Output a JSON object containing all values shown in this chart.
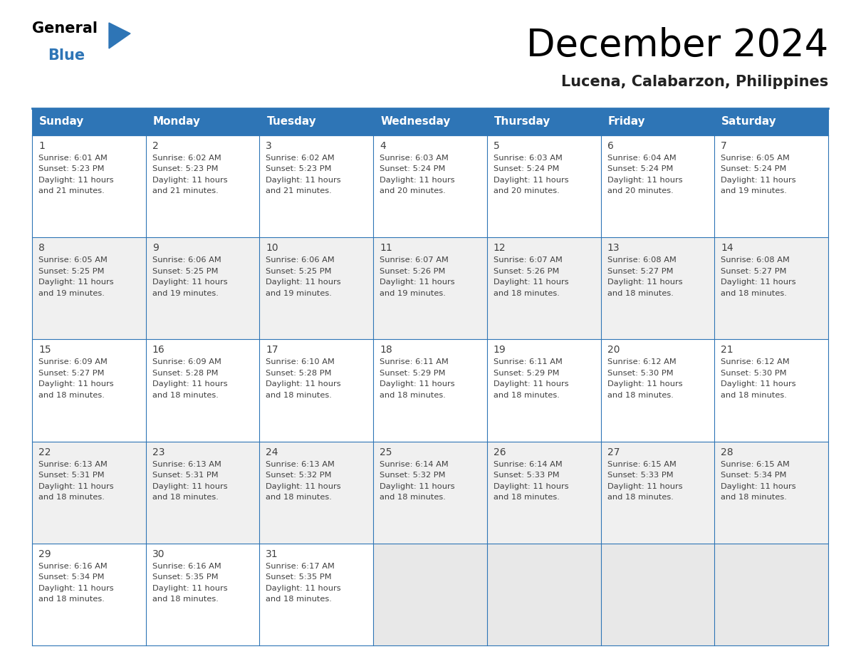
{
  "title": "December 2024",
  "subtitle": "Lucena, Calabarzon, Philippines",
  "header_bg": "#2E75B6",
  "header_text_color": "#FFFFFF",
  "days_of_week": [
    "Sunday",
    "Monday",
    "Tuesday",
    "Wednesday",
    "Thursday",
    "Friday",
    "Saturday"
  ],
  "cell_bg_white": "#FFFFFF",
  "cell_bg_gray": "#F0F0F0",
  "cell_bg_empty": "#E8E8E8",
  "border_color": "#2E75B6",
  "text_color": "#404040",
  "calendar": [
    [
      {
        "day": 1,
        "sunrise": "6:01 AM",
        "sunset": "5:23 PM",
        "daylight": "11 hours and 21 minutes."
      },
      {
        "day": 2,
        "sunrise": "6:02 AM",
        "sunset": "5:23 PM",
        "daylight": "11 hours and 21 minutes."
      },
      {
        "day": 3,
        "sunrise": "6:02 AM",
        "sunset": "5:23 PM",
        "daylight": "11 hours and 21 minutes."
      },
      {
        "day": 4,
        "sunrise": "6:03 AM",
        "sunset": "5:24 PM",
        "daylight": "11 hours and 20 minutes."
      },
      {
        "day": 5,
        "sunrise": "6:03 AM",
        "sunset": "5:24 PM",
        "daylight": "11 hours and 20 minutes."
      },
      {
        "day": 6,
        "sunrise": "6:04 AM",
        "sunset": "5:24 PM",
        "daylight": "11 hours and 20 minutes."
      },
      {
        "day": 7,
        "sunrise": "6:05 AM",
        "sunset": "5:24 PM",
        "daylight": "11 hours and 19 minutes."
      }
    ],
    [
      {
        "day": 8,
        "sunrise": "6:05 AM",
        "sunset": "5:25 PM",
        "daylight": "11 hours and 19 minutes."
      },
      {
        "day": 9,
        "sunrise": "6:06 AM",
        "sunset": "5:25 PM",
        "daylight": "11 hours and 19 minutes."
      },
      {
        "day": 10,
        "sunrise": "6:06 AM",
        "sunset": "5:25 PM",
        "daylight": "11 hours and 19 minutes."
      },
      {
        "day": 11,
        "sunrise": "6:07 AM",
        "sunset": "5:26 PM",
        "daylight": "11 hours and 19 minutes."
      },
      {
        "day": 12,
        "sunrise": "6:07 AM",
        "sunset": "5:26 PM",
        "daylight": "11 hours and 18 minutes."
      },
      {
        "day": 13,
        "sunrise": "6:08 AM",
        "sunset": "5:27 PM",
        "daylight": "11 hours and 18 minutes."
      },
      {
        "day": 14,
        "sunrise": "6:08 AM",
        "sunset": "5:27 PM",
        "daylight": "11 hours and 18 minutes."
      }
    ],
    [
      {
        "day": 15,
        "sunrise": "6:09 AM",
        "sunset": "5:27 PM",
        "daylight": "11 hours and 18 minutes."
      },
      {
        "day": 16,
        "sunrise": "6:09 AM",
        "sunset": "5:28 PM",
        "daylight": "11 hours and 18 minutes."
      },
      {
        "day": 17,
        "sunrise": "6:10 AM",
        "sunset": "5:28 PM",
        "daylight": "11 hours and 18 minutes."
      },
      {
        "day": 18,
        "sunrise": "6:11 AM",
        "sunset": "5:29 PM",
        "daylight": "11 hours and 18 minutes."
      },
      {
        "day": 19,
        "sunrise": "6:11 AM",
        "sunset": "5:29 PM",
        "daylight": "11 hours and 18 minutes."
      },
      {
        "day": 20,
        "sunrise": "6:12 AM",
        "sunset": "5:30 PM",
        "daylight": "11 hours and 18 minutes."
      },
      {
        "day": 21,
        "sunrise": "6:12 AM",
        "sunset": "5:30 PM",
        "daylight": "11 hours and 18 minutes."
      }
    ],
    [
      {
        "day": 22,
        "sunrise": "6:13 AM",
        "sunset": "5:31 PM",
        "daylight": "11 hours and 18 minutes."
      },
      {
        "day": 23,
        "sunrise": "6:13 AM",
        "sunset": "5:31 PM",
        "daylight": "11 hours and 18 minutes."
      },
      {
        "day": 24,
        "sunrise": "6:13 AM",
        "sunset": "5:32 PM",
        "daylight": "11 hours and 18 minutes."
      },
      {
        "day": 25,
        "sunrise": "6:14 AM",
        "sunset": "5:32 PM",
        "daylight": "11 hours and 18 minutes."
      },
      {
        "day": 26,
        "sunrise": "6:14 AM",
        "sunset": "5:33 PM",
        "daylight": "11 hours and 18 minutes."
      },
      {
        "day": 27,
        "sunrise": "6:15 AM",
        "sunset": "5:33 PM",
        "daylight": "11 hours and 18 minutes."
      },
      {
        "day": 28,
        "sunrise": "6:15 AM",
        "sunset": "5:34 PM",
        "daylight": "11 hours and 18 minutes."
      }
    ],
    [
      {
        "day": 29,
        "sunrise": "6:16 AM",
        "sunset": "5:34 PM",
        "daylight": "11 hours and 18 minutes."
      },
      {
        "day": 30,
        "sunrise": "6:16 AM",
        "sunset": "5:35 PM",
        "daylight": "11 hours and 18 minutes."
      },
      {
        "day": 31,
        "sunrise": "6:17 AM",
        "sunset": "5:35 PM",
        "daylight": "11 hours and 18 minutes."
      },
      null,
      null,
      null,
      null
    ]
  ],
  "logo_text1": "General",
  "logo_text2": "Blue",
  "logo_color1": "#000000",
  "logo_color2": "#2E75B6",
  "logo_triangle_color": "#2E75B6",
  "title_fontsize": 38,
  "subtitle_fontsize": 15,
  "header_fontsize": 11,
  "day_num_fontsize": 10,
  "cell_text_fontsize": 8.2
}
